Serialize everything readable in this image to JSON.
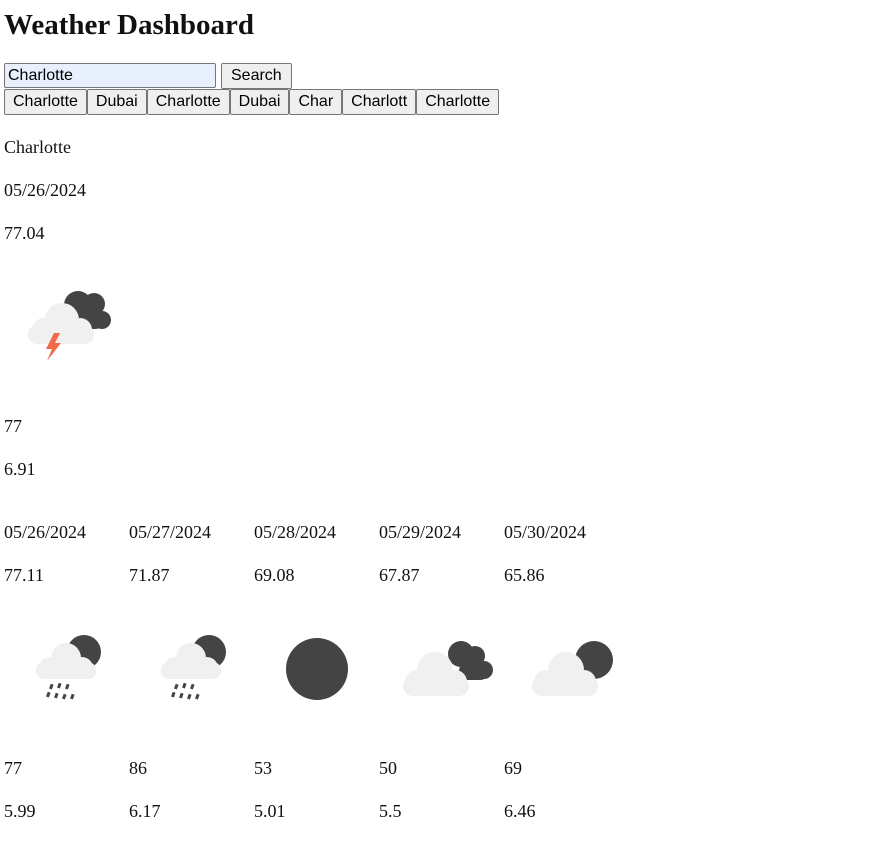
{
  "header": {
    "title": "Weather Dashboard"
  },
  "search": {
    "value": "Charlotte",
    "button_label": "Search"
  },
  "history": [
    "Charlotte",
    "Dubai",
    "Charlotte",
    "Dubai",
    "Char",
    "Charlott",
    "Charlotte"
  ],
  "current": {
    "city": "Charlotte",
    "date": "05/26/2024",
    "temp": "77.04",
    "icon": "thunderstorm-cloud-moon-icon",
    "humidity": "77",
    "wind": "6.91"
  },
  "forecast": [
    {
      "date": "05/26/2024",
      "temp": "77.11",
      "icon": "rain-cloud-moon-icon",
      "humidity": "77",
      "wind": "5.99"
    },
    {
      "date": "05/27/2024",
      "temp": "71.87",
      "icon": "rain-cloud-moon-icon",
      "humidity": "86",
      "wind": "6.17"
    },
    {
      "date": "05/28/2024",
      "temp": "69.08",
      "icon": "full-moon-icon",
      "humidity": "53",
      "wind": "5.01"
    },
    {
      "date": "05/29/2024",
      "temp": "67.87",
      "icon": "clouds-moon-icon",
      "humidity": "50",
      "wind": "5.5"
    },
    {
      "date": "05/30/2024",
      "temp": "65.86",
      "icon": "cloud-moon-icon",
      "humidity": "69",
      "wind": "6.46"
    }
  ],
  "colors": {
    "cloud_light": "#f0f0f0",
    "cloud_dark": "#444444",
    "bolt": "#f06a4a",
    "input_bg": "#e8f0fe",
    "button_bg": "#efefef"
  }
}
